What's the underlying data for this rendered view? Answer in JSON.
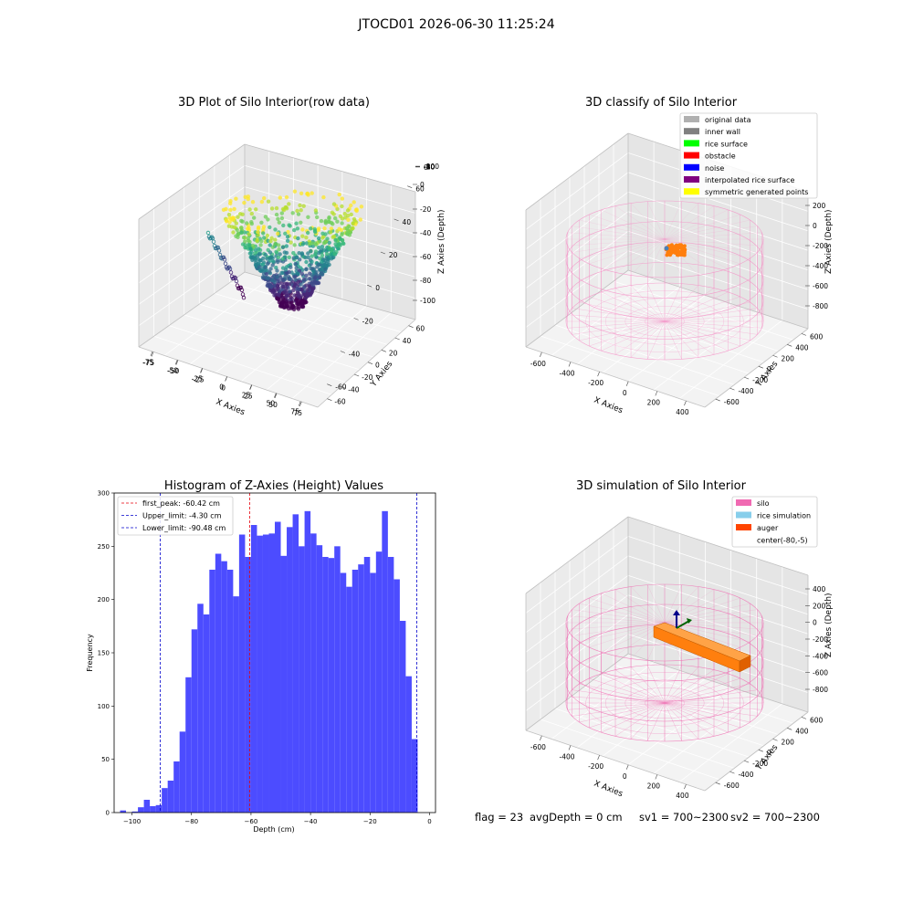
{
  "suptitle": "JTOCD01 2026-06-30 11:25:24",
  "footer": {
    "flag": "flag = 23",
    "avg_depth": "avgDepth = 0 cm",
    "sv1": "sv1 = 700~2300",
    "sv2": "sv2 = 700~2300"
  },
  "colors": {
    "histogram_bar": "#4c4cff",
    "first_peak_line": "#e8000b",
    "limit_line": "#0000cc",
    "silo_wire": "#f06ab2",
    "auger": "#ff7f0e"
  },
  "chart_data": [
    {
      "type": "scatter3d",
      "title": "3D Plot of Silo Interior(row data)",
      "xlabel": "X Axies",
      "ylabel": "Y Axies",
      "zlabel": "Z Axies (Depth)",
      "x_ticks": [
        "-75",
        "-50",
        "-25",
        "0",
        "25",
        "50",
        "75"
      ],
      "y_ticks": [
        "60",
        "40",
        "20",
        "0",
        "-20",
        "-40",
        "-60"
      ],
      "z_ticks": [
        "0",
        "-20",
        "-40",
        "-60",
        "-80",
        "-100"
      ],
      "colormap": "viridis",
      "note_visual": "point cloud of silo interior colored by depth"
    },
    {
      "type": "scatter3d",
      "title": "3D classify of Silo Interior",
      "zlabel": "Z Axies (Depth)",
      "xlabel": "X Axies",
      "ylabel": "Y Axies",
      "x_ticks": [
        "-600",
        "-400",
        "-200",
        "0",
        "200",
        "400"
      ],
      "y_ticks": [
        "600",
        "400",
        "200",
        "0",
        "-200",
        "-400",
        "-600"
      ],
      "z_ticks": [
        "200",
        "0",
        "-200",
        "-400",
        "-600",
        "-800"
      ],
      "legend": [
        {
          "label": "original data",
          "color": "#b0b0b0"
        },
        {
          "label": "inner wall",
          "color": "#808080"
        },
        {
          "label": "rice surface",
          "color": "#00ff00"
        },
        {
          "label": "obstacle",
          "color": "#ff0000"
        },
        {
          "label": "noise",
          "color": "#0000ff"
        },
        {
          "label": "interpolated rice surface",
          "color": "#800080"
        },
        {
          "label": "symmetric generated points",
          "color": "#ffff00"
        }
      ]
    },
    {
      "type": "bar",
      "title": "Histogram of Z-Axies (Height) Values",
      "xlabel": "Depth (cm)",
      "ylabel": "Frequency",
      "xlim": [
        -106,
        2
      ],
      "ylim": [
        0,
        300
      ],
      "x_ticks": [
        -100,
        -80,
        -60,
        -40,
        -20,
        0
      ],
      "y_ticks": [
        0,
        50,
        100,
        150,
        200,
        250,
        300
      ],
      "bin_start": -104,
      "bin_width": 2,
      "values": [
        2,
        0,
        1,
        5,
        12,
        6,
        7,
        23,
        30,
        48,
        76,
        127,
        172,
        196,
        186,
        228,
        243,
        236,
        228,
        203,
        261,
        240,
        270,
        260,
        261,
        262,
        273,
        241,
        268,
        280,
        250,
        283,
        262,
        251,
        240,
        239,
        250,
        225,
        212,
        228,
        233,
        240,
        225,
        245,
        283,
        240,
        219,
        180,
        128,
        69
      ],
      "vlines": [
        {
          "label": "first_peak: -60.42 cm",
          "x": -60.42,
          "color": "#e8000b"
        },
        {
          "label": "Upper_limit: -4.30 cm",
          "x": -4.3,
          "color": "#0000cc"
        },
        {
          "label": "Lower_limit: -90.48 cm",
          "x": -90.48,
          "color": "#0000cc"
        }
      ]
    },
    {
      "type": "wireframe3d",
      "title": "3D simulation of Silo Interior",
      "xlabel": "X Axies",
      "ylabel": "Y Axies",
      "zlabel": "Z Axies (Depth)",
      "x_ticks": [
        "-600",
        "-400",
        "-200",
        "0",
        "200",
        "400"
      ],
      "y_ticks": [
        "600",
        "400",
        "200",
        "0",
        "-200",
        "-400",
        "-600"
      ],
      "z_ticks": [
        "400",
        "200",
        "0",
        "-200",
        "-400",
        "-600",
        "-800"
      ],
      "legend": [
        {
          "label": "silo",
          "color": "#f06ab2"
        },
        {
          "label": "rice simulation",
          "color": "#87ceeb"
        },
        {
          "label": "auger",
          "color": "#ff4500"
        },
        {
          "label": "center(-80,-5)",
          "color": ""
        }
      ]
    }
  ]
}
